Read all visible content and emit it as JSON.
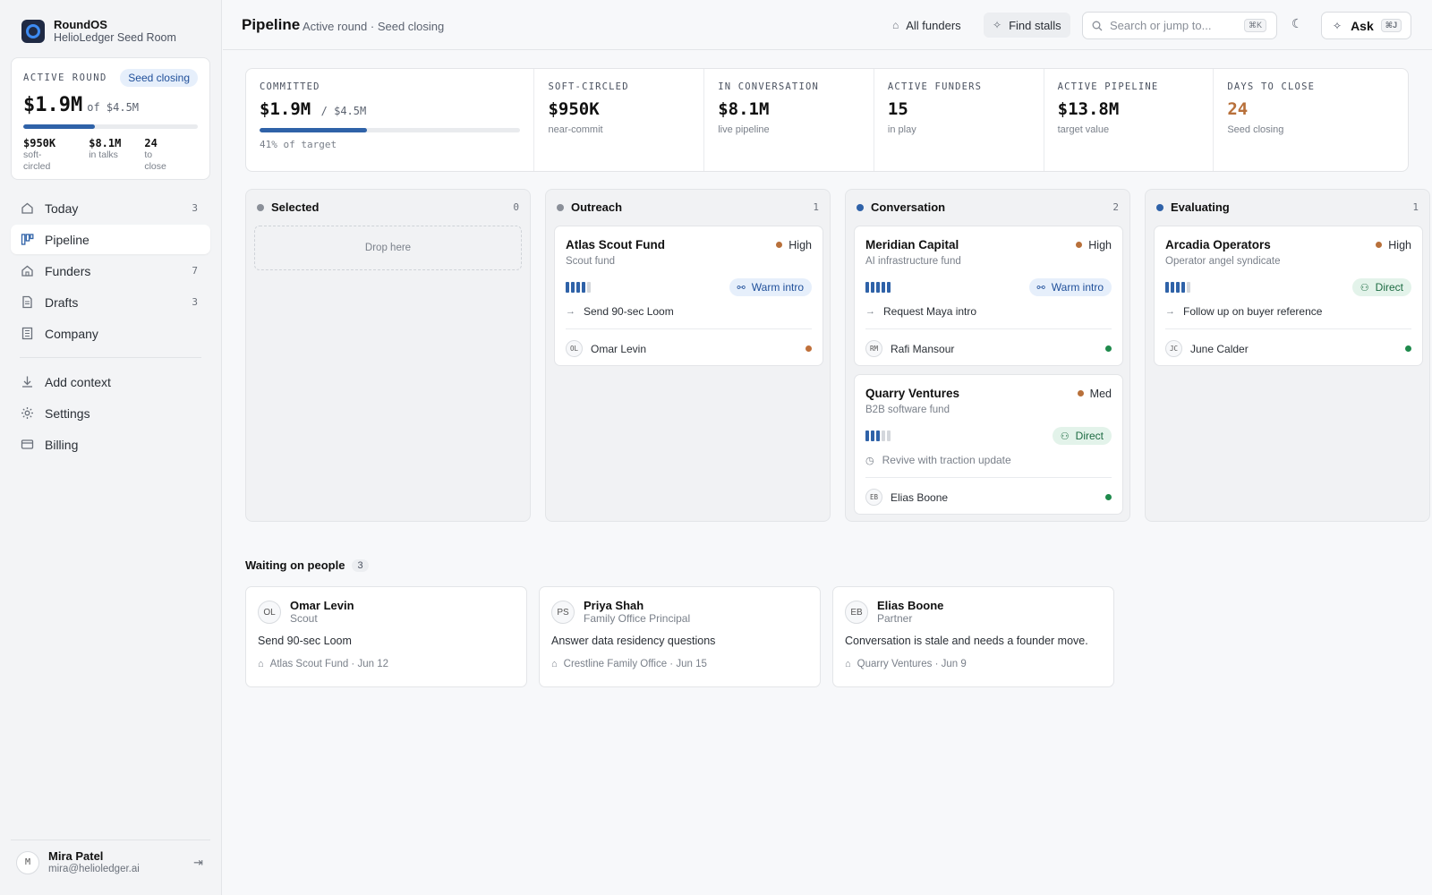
{
  "brand": {
    "name": "RoundOS",
    "sub": "HelioLedger Seed Room"
  },
  "round": {
    "label": "ACTIVE ROUND",
    "badge": "Seed closing",
    "amount": "$1.9M",
    "of": "of $4.5M",
    "progress_percent": 41,
    "stats": [
      {
        "value": "$950K",
        "label": "soft-circled"
      },
      {
        "value": "$8.1M",
        "label": "in talks"
      },
      {
        "value": "24",
        "label": "to close"
      }
    ]
  },
  "nav": {
    "items": [
      {
        "label": "Today",
        "count": "3",
        "icon": "home-icon"
      },
      {
        "label": "Pipeline",
        "count": "",
        "icon": "kanban-icon",
        "active": true
      },
      {
        "label": "Funders",
        "count": "7",
        "icon": "building-icon"
      },
      {
        "label": "Drafts",
        "count": "3",
        "icon": "document-icon"
      },
      {
        "label": "Company",
        "count": "",
        "icon": "office-icon"
      }
    ],
    "secondary": [
      {
        "label": "Add context",
        "icon": "download-icon"
      },
      {
        "label": "Settings",
        "icon": "gear-icon"
      },
      {
        "label": "Billing",
        "icon": "credit-card-icon"
      }
    ]
  },
  "user": {
    "initial": "M",
    "name": "Mira Patel",
    "email": "mira@helioledger.ai"
  },
  "topbar": {
    "title": "Pipeline",
    "subtitle": "Active round · Seed closing",
    "all_funders": "All funders",
    "find_stalls": "Find stalls",
    "search_placeholder": "Search or jump to...",
    "search_kbd": "⌘K",
    "ask": "Ask",
    "ask_kbd": "⌘J"
  },
  "metrics": [
    {
      "label": "COMMITTED",
      "value": "$1.9M",
      "of": "/ $4.5M",
      "sub": "41% of target",
      "progress_percent": 41
    },
    {
      "label": "SOFT-CIRCLED",
      "value": "$950K",
      "sub": "near-commit"
    },
    {
      "label": "IN CONVERSATION",
      "value": "$8.1M",
      "sub": "live pipeline"
    },
    {
      "label": "ACTIVE FUNDERS",
      "value": "15",
      "sub": "in play"
    },
    {
      "label": "ACTIVE PIPELINE",
      "value": "$13.8M",
      "sub": "target value"
    },
    {
      "label": "DAYS TO CLOSE",
      "value": "24",
      "sub": "Seed closing",
      "accent": "#b8703a"
    }
  ],
  "columns": [
    {
      "title": "Selected",
      "count": "0",
      "dot": "#8a8f98",
      "drop": "Drop here",
      "cards": []
    },
    {
      "title": "Outreach",
      "count": "1",
      "dot": "#8a8f98",
      "cards": [
        {
          "name": "Atlas Scout Fund",
          "priority": "High",
          "type": "Scout fund",
          "strength": 4,
          "tag": "Warm intro",
          "tag_kind": "warm",
          "action": "Send 90-sec Loom",
          "action_kind": "arrow",
          "owner_initials": "OL",
          "owner": "Omar Levin",
          "status_color": "#c0703a"
        }
      ]
    },
    {
      "title": "Conversation",
      "count": "2",
      "dot": "#2f62a8",
      "cards": [
        {
          "name": "Meridian Capital",
          "priority": "High",
          "type": "AI infrastructure fund",
          "strength": 5,
          "tag": "Warm intro",
          "tag_kind": "warm",
          "action": "Request Maya intro",
          "action_kind": "arrow",
          "owner_initials": "RM",
          "owner": "Rafi Mansour",
          "status_color": "#1f8a4c"
        },
        {
          "name": "Quarry Ventures",
          "priority": "Med",
          "type": "B2B software fund",
          "strength": 3,
          "tag": "Direct",
          "tag_kind": "direct",
          "action": "Revive with traction update",
          "action_kind": "stale",
          "owner_initials": "EB",
          "owner": "Elias Boone",
          "status_color": "#1f8a4c"
        }
      ]
    },
    {
      "title": "Evaluating",
      "count": "1",
      "dot": "#2f62a8",
      "cards": [
        {
          "name": "Arcadia Operators",
          "priority": "High",
          "type": "Operator angel syndicate",
          "strength": 4,
          "tag": "Direct",
          "tag_kind": "direct",
          "action": "Follow up on buyer reference",
          "action_kind": "arrow",
          "owner_initials": "JC",
          "owner": "June Calder",
          "status_color": "#1f8a4c"
        }
      ]
    }
  ],
  "waiting": {
    "title": "Waiting on people",
    "count": "3",
    "items": [
      {
        "initials": "OL",
        "name": "Omar Levin",
        "role": "Scout",
        "task": "Send 90-sec Loom",
        "meta": "Atlas Scout Fund · Jun 12"
      },
      {
        "initials": "PS",
        "name": "Priya Shah",
        "role": "Family Office Principal",
        "task": "Answer data residency questions",
        "meta": "Crestline Family Office · Jun 15"
      },
      {
        "initials": "EB",
        "name": "Elias Boone",
        "role": "Partner",
        "task": "Conversation is stale and needs a founder move.",
        "meta": "Quarry Ventures · Jun 9"
      }
    ]
  }
}
